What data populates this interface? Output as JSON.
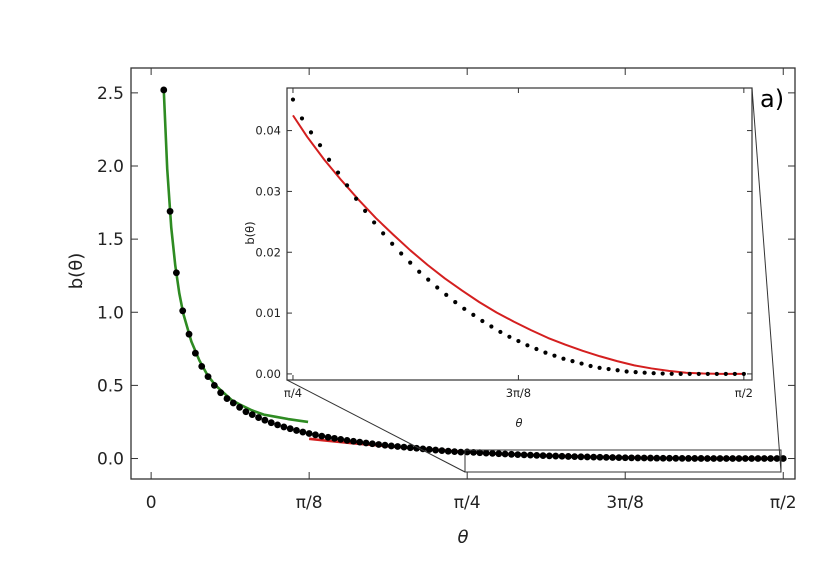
{
  "chart_data": [
    {
      "type": "scatter",
      "panel_label": "a)",
      "xlabel": "θ",
      "ylabel": "b(θ)",
      "xlim": [
        -0.05,
        1.6
      ],
      "ylim": [
        -0.14,
        2.67
      ],
      "x_ticks": [
        {
          "value": 0,
          "label": "0"
        },
        {
          "value": 0.3927,
          "label": "π/8"
        },
        {
          "value": 0.7854,
          "label": "π/4"
        },
        {
          "value": 1.1781,
          "label": "3π/8"
        },
        {
          "value": 1.5708,
          "label": "π/2"
        }
      ],
      "y_ticks": [
        {
          "value": 0.0,
          "label": "0.0"
        },
        {
          "value": 0.5,
          "label": "0.5"
        },
        {
          "value": 1.0,
          "label": "1.0"
        },
        {
          "value": 1.5,
          "label": "1.5"
        },
        {
          "value": 2.0,
          "label": "2.0"
        },
        {
          "value": 2.5,
          "label": "2.5"
        }
      ],
      "grid": false,
      "series": [
        {
          "kind": "points",
          "color": "#000000",
          "x": [
            0.0314,
            0.0471,
            0.0628,
            0.0785,
            0.0942,
            0.11,
            0.1257,
            0.1414,
            0.1571,
            0.1728,
            0.1885,
            0.2042,
            0.2199,
            0.2356,
            0.2513,
            0.267,
            0.2827,
            0.2985,
            0.3142,
            0.3299,
            0.3456,
            0.3613,
            0.377,
            0.3927,
            0.4084,
            0.4241,
            0.4398,
            0.4555,
            0.4712,
            0.4869,
            0.5027,
            0.5184,
            0.5341,
            0.5498,
            0.5655,
            0.5812,
            0.5969,
            0.6126,
            0.6283,
            0.644,
            0.6597,
            0.6754,
            0.6912,
            0.7069,
            0.7226,
            0.7383,
            0.754,
            0.7697,
            0.7854,
            0.8011,
            0.8168,
            0.8325,
            0.8482,
            0.8639,
            0.8796,
            0.8954,
            0.9111,
            0.9268,
            0.9425,
            0.9582,
            0.9739,
            0.9896,
            1.0053,
            1.021,
            1.0367,
            1.0524,
            1.0681,
            1.0838,
            1.0996,
            1.1153,
            1.131,
            1.1467,
            1.1624,
            1.1781,
            1.1938,
            1.2095,
            1.2252,
            1.2409,
            1.2566,
            1.2723,
            1.2881,
            1.3038,
            1.3195,
            1.3352,
            1.3509,
            1.3666,
            1.3823,
            1.398,
            1.4137,
            1.4294,
            1.4451,
            1.4608,
            1.4765,
            1.4923,
            1.508,
            1.5237,
            1.5394,
            1.5551,
            1.5708
          ],
          "y": [
            2.52,
            1.69,
            1.27,
            1.01,
            0.85,
            0.72,
            0.63,
            0.56,
            0.5,
            0.45,
            0.41,
            0.38,
            0.35,
            0.32,
            0.3,
            0.28,
            0.262,
            0.245,
            0.23,
            0.216,
            0.204,
            0.192,
            0.181,
            0.171,
            0.162,
            0.153,
            0.145,
            0.138,
            0.131,
            0.124,
            0.118,
            0.112,
            0.106,
            0.101,
            0.096,
            0.091,
            0.086,
            0.082,
            0.078,
            0.074,
            0.07,
            0.066,
            0.062,
            0.058,
            0.054,
            0.05,
            0.047,
            0.044,
            0.045,
            0.042,
            0.04,
            0.0375,
            0.0352,
            0.033,
            0.031,
            0.0288,
            0.0268,
            0.0249,
            0.0231,
            0.0214,
            0.0198,
            0.0183,
            0.0168,
            0.0155,
            0.0142,
            0.013,
            0.0118,
            0.0107,
            0.0097,
            0.0087,
            0.0078,
            0.0069,
            0.0061,
            0.0054,
            0.0047,
            0.0041,
            0.0035,
            0.003,
            0.0025,
            0.0021,
            0.0017,
            0.0013,
            0.001,
            0.0008,
            0.0006,
            0.0004,
            0.0003,
            0.0002,
            0.0001,
            5e-05,
            2e-05,
            1e-05,
            0,
            0,
            0,
            0,
            0,
            0,
            0
          ]
        },
        {
          "kind": "line",
          "color": "#2e8b22",
          "x": [
            0.0314,
            0.04,
            0.05,
            0.06,
            0.07,
            0.08,
            0.1,
            0.12,
            0.14,
            0.16,
            0.18,
            0.2,
            0.22,
            0.25,
            0.28,
            0.31,
            0.34,
            0.37,
            0.39
          ],
          "y": [
            2.52,
            1.98,
            1.58,
            1.32,
            1.13,
            0.99,
            0.8,
            0.67,
            0.57,
            0.5,
            0.45,
            0.4,
            0.37,
            0.33,
            0.3,
            0.285,
            0.27,
            0.258,
            0.25
          ]
        },
        {
          "kind": "line",
          "color": "#d41f1f",
          "x": [
            0.3927,
            0.45,
            0.5,
            0.55,
            0.6,
            0.65,
            0.7,
            0.7854,
            0.85,
            0.9,
            0.95,
            1.0,
            1.05,
            1.1,
            1.1781,
            1.25,
            1.3,
            1.35,
            1.4,
            1.45,
            1.5,
            1.5708
          ],
          "y": [
            0.135,
            0.118,
            0.105,
            0.093,
            0.082,
            0.071,
            0.061,
            0.043,
            0.034,
            0.0285,
            0.0235,
            0.019,
            0.015,
            0.0115,
            0.0072,
            0.0042,
            0.0027,
            0.0015,
            0.0007,
            0.0002,
            3e-05,
            0
          ]
        }
      ]
    },
    {
      "type": "scatter",
      "inset": true,
      "xlabel": "θ",
      "ylabel": "b(θ)",
      "xlim": [
        0.775,
        1.585
      ],
      "ylim": [
        -0.001,
        0.047
      ],
      "x_ticks": [
        {
          "value": 0.7854,
          "label": "π/4"
        },
        {
          "value": 1.1781,
          "label": "3π/8"
        },
        {
          "value": 1.5708,
          "label": "π/2"
        }
      ],
      "y_ticks": [
        {
          "value": 0.0,
          "label": "0.00"
        },
        {
          "value": 0.01,
          "label": "0.01"
        },
        {
          "value": 0.02,
          "label": "0.02"
        },
        {
          "value": 0.03,
          "label": "0.03"
        },
        {
          "value": 0.04,
          "label": "0.04"
        }
      ],
      "grid": false,
      "series": [
        {
          "kind": "points",
          "color": "#000000",
          "x": [
            0.7854,
            0.8011,
            0.8168,
            0.8325,
            0.8482,
            0.8639,
            0.8796,
            0.8954,
            0.9111,
            0.9268,
            0.9425,
            0.9582,
            0.9739,
            0.9896,
            1.0053,
            1.021,
            1.0367,
            1.0524,
            1.0681,
            1.0838,
            1.0996,
            1.1153,
            1.131,
            1.1467,
            1.1624,
            1.1781,
            1.1938,
            1.2095,
            1.2252,
            1.2409,
            1.2566,
            1.2723,
            1.2881,
            1.3038,
            1.3195,
            1.3352,
            1.3509,
            1.3666,
            1.3823,
            1.398,
            1.4137,
            1.4294,
            1.4451,
            1.4608,
            1.4765,
            1.4923,
            1.508,
            1.5237,
            1.5394,
            1.5551,
            1.5708
          ],
          "y": [
            0.0451,
            0.042,
            0.0397,
            0.0376,
            0.0352,
            0.0331,
            0.031,
            0.0288,
            0.0268,
            0.0249,
            0.0231,
            0.0214,
            0.0198,
            0.0183,
            0.0168,
            0.0155,
            0.0142,
            0.013,
            0.0118,
            0.0107,
            0.0097,
            0.0087,
            0.0078,
            0.0069,
            0.0061,
            0.0054,
            0.0047,
            0.0041,
            0.0035,
            0.003,
            0.0025,
            0.0021,
            0.0017,
            0.0013,
            0.001,
            0.0008,
            0.0006,
            0.0004,
            0.0003,
            0.0002,
            0.00012,
            6e-05,
            2e-05,
            1e-05,
            0.0,
            0.0,
            0.0,
            0.0,
            0.0,
            0.0,
            0.0
          ]
        },
        {
          "kind": "line",
          "color": "#d41f1f",
          "x": [
            0.7854,
            0.81,
            0.84,
            0.87,
            0.9,
            0.93,
            0.96,
            0.99,
            1.02,
            1.05,
            1.08,
            1.11,
            1.14,
            1.17,
            1.2,
            1.23,
            1.26,
            1.29,
            1.32,
            1.35,
            1.38,
            1.41,
            1.44,
            1.47,
            1.5,
            1.53,
            1.5708
          ],
          "y": [
            0.0425,
            0.039,
            0.0352,
            0.0318,
            0.0286,
            0.0256,
            0.0229,
            0.0203,
            0.0179,
            0.0157,
            0.0137,
            0.0118,
            0.0101,
            0.0086,
            0.0072,
            0.0059,
            0.0048,
            0.0038,
            0.0029,
            0.0021,
            0.0014,
            0.0009,
            0.0005,
            0.0002,
            6e-05,
            1e-05,
            0
          ]
        }
      ]
    }
  ]
}
